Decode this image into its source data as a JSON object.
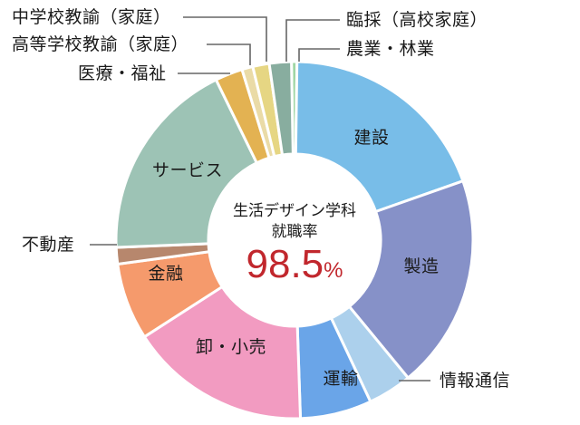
{
  "chart_data": {
    "type": "pie",
    "variant": "donut",
    "title": "生活デザイン学科 就職率",
    "center_value": "98.5",
    "center_unit": "%",
    "categories": [
      "農業・林業",
      "建設",
      "製造",
      "情報通信",
      "運輸",
      "卸・小売",
      "金融",
      "不動産",
      "サービス",
      "医療・福祉",
      "高等学校教諭（家庭）",
      "中学校教諭（家庭）",
      "臨採（高校家庭）"
    ],
    "values": [
      0.5,
      19.5,
      19.5,
      4.0,
      6.5,
      16.5,
      7.0,
      1.5,
      18.5,
      2.5,
      1.0,
      1.5,
      2.0
    ],
    "colors": [
      "#9fd6a4",
      "#78bde8",
      "#8691c8",
      "#acd0ec",
      "#6aa5e8",
      "#f29bc1",
      "#f59a6c",
      "#b7876d",
      "#9dc3b5",
      "#e3b252",
      "#eadba7",
      "#e6d683",
      "#88ad9f"
    ],
    "legend_position": "callouts",
    "center_title_lines": [
      "生活デザイン学科",
      "就職率"
    ],
    "rate_color": "#c1272d"
  },
  "labels": {
    "agri": "農業・林業",
    "construction": "建設",
    "manufacturing": "製造",
    "it": "情報通信",
    "transport": "運輸",
    "retail": "卸・小売",
    "finance": "金融",
    "realestate": "不動産",
    "service": "サービス",
    "medical": "医療・福祉",
    "hs_teacher": "高等学校教諭（家庭）",
    "jhs_teacher": "中学校教諭（家庭）",
    "temp_teacher": "臨採（高校家庭）"
  },
  "center": {
    "line1": "生活デザイン学科",
    "line2": "就職率",
    "rate": "98.5",
    "unit": "%"
  }
}
